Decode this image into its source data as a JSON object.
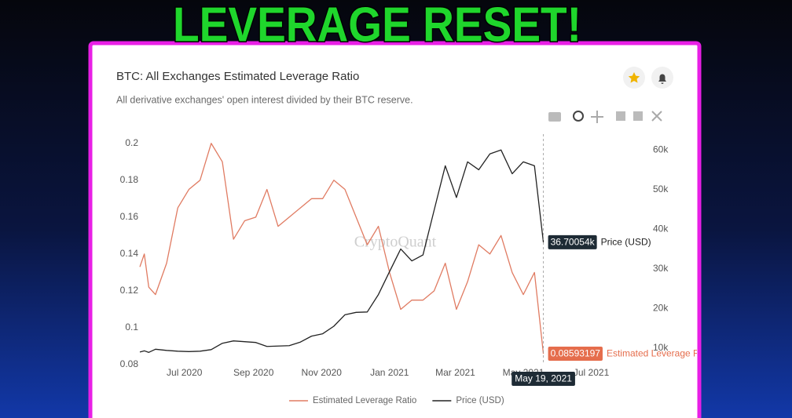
{
  "headline": "LEVERAGE RESET!",
  "chart_data": {
    "type": "line",
    "title": "BTC: All Exchanges Estimated Leverage Ratio",
    "subtitle": "All derivative exchanges' open interest divided by their BTC reserve.",
    "watermark": "CryptoQuant",
    "crosshair_label": "May 19, 2021",
    "x": [
      "2020-05-22",
      "2020-05-26",
      "2020-05-30",
      "2020-06-05",
      "2020-06-15",
      "2020-06-25",
      "2020-07-05",
      "2020-07-15",
      "2020-07-25",
      "2020-08-04",
      "2020-08-14",
      "2020-08-24",
      "2020-09-03",
      "2020-09-13",
      "2020-09-23",
      "2020-10-03",
      "2020-10-13",
      "2020-10-23",
      "2020-11-02",
      "2020-11-12",
      "2020-11-22",
      "2020-12-02",
      "2020-12-12",
      "2020-12-22",
      "2021-01-01",
      "2021-01-11",
      "2021-01-21",
      "2021-01-31",
      "2021-02-10",
      "2021-02-20",
      "2021-03-02",
      "2021-03-12",
      "2021-03-22",
      "2021-04-01",
      "2021-04-11",
      "2021-04-21",
      "2021-05-01",
      "2021-05-11",
      "2021-05-19"
    ],
    "xlim": [
      "2020-05-22",
      "2021-08-14"
    ],
    "xticks": [
      {
        "value": "2020-07-01",
        "label": "Jul 2020"
      },
      {
        "value": "2020-09-01",
        "label": "Sep 2020"
      },
      {
        "value": "2020-11-01",
        "label": "Nov 2020"
      },
      {
        "value": "2021-01-01",
        "label": "Jan 2021"
      },
      {
        "value": "2021-03-01",
        "label": "Mar 2021"
      },
      {
        "value": "2021-05-01",
        "label": "May 2021"
      },
      {
        "value": "2021-07-01",
        "label": "Jul 2021"
      }
    ],
    "ylim": [
      0.08,
      0.205
    ],
    "yticks": [
      0.08,
      0.1,
      0.12,
      0.14,
      0.16,
      0.18,
      0.2
    ],
    "y2lim": [
      5800,
      64000
    ],
    "y2ticks": [
      {
        "value": 10000,
        "label": "10k"
      },
      {
        "value": 20000,
        "label": "20k"
      },
      {
        "value": 30000,
        "label": "30k"
      },
      {
        "value": 40000,
        "label": "40k"
      },
      {
        "value": 50000,
        "label": "50k"
      },
      {
        "value": 60000,
        "label": "60k"
      }
    ],
    "grid": false,
    "legend": "bottom",
    "series": [
      {
        "name": "Estimated Leverage Ratio",
        "color": "#e07b62",
        "axis": "y",
        "values": [
          0.133,
          0.14,
          0.122,
          0.118,
          0.135,
          0.165,
          0.175,
          0.18,
          0.2,
          0.19,
          0.148,
          0.158,
          0.16,
          0.175,
          0.155,
          0.16,
          0.165,
          0.17,
          0.17,
          0.18,
          0.175,
          0.16,
          0.145,
          0.155,
          0.13,
          0.11,
          0.115,
          0.115,
          0.12,
          0.135,
          0.11,
          0.125,
          0.145,
          0.14,
          0.15,
          0.13,
          0.118,
          0.13,
          0.08593197
        ],
        "value_labels": [
          null,
          null,
          null,
          null,
          null,
          null,
          null,
          null,
          null,
          null,
          null,
          null,
          null,
          null,
          null,
          null,
          null,
          null,
          null,
          null,
          null,
          null,
          null,
          null,
          null,
          null,
          null,
          null,
          null,
          null,
          null,
          null,
          null,
          null,
          null,
          null,
          null,
          null,
          "0.08593197"
        ]
      },
      {
        "name": "Price (USD)",
        "color": "#222222",
        "axis": "y2",
        "values": [
          9000,
          9300,
          8900,
          9700,
          9400,
          9200,
          9100,
          9200,
          9600,
          11200,
          11800,
          11600,
          11400,
          10400,
          10500,
          10600,
          11500,
          13000,
          13600,
          15500,
          18400,
          19000,
          19100,
          23500,
          29300,
          35000,
          32000,
          33500,
          44800,
          56000,
          48000,
          57000,
          55000,
          59000,
          60000,
          54000,
          57000,
          56000,
          36700.54
        ],
        "value_labels": [
          null,
          null,
          null,
          null,
          null,
          null,
          null,
          null,
          null,
          null,
          null,
          null,
          null,
          null,
          null,
          null,
          null,
          null,
          null,
          null,
          null,
          null,
          null,
          null,
          null,
          null,
          null,
          null,
          null,
          null,
          null,
          null,
          null,
          null,
          null,
          null,
          null,
          null,
          "36.70054k"
        ]
      }
    ]
  }
}
